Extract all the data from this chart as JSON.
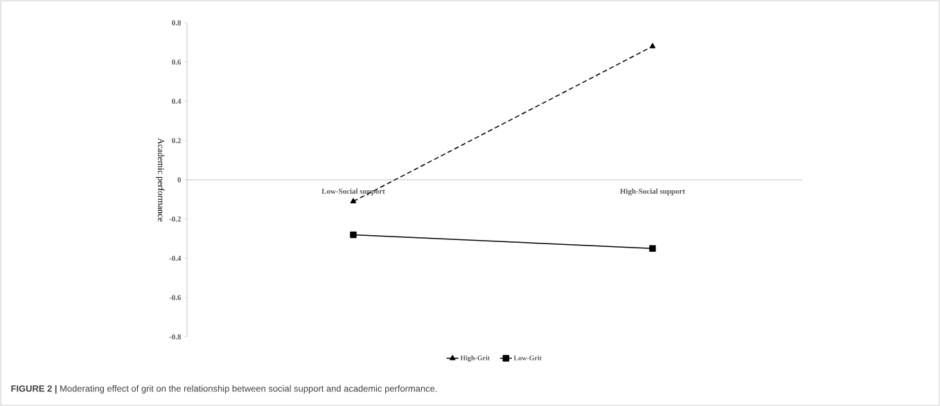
{
  "chart_data": {
    "type": "line",
    "ylabel": "Academic performance",
    "categories": [
      "Low-Social support",
      "High-Social support"
    ],
    "series": [
      {
        "name": "High-Grit",
        "color": "#000000",
        "values": [
          -0.11,
          0.68
        ],
        "marker": "triangle",
        "line_style": "dashed"
      },
      {
        "name": "Low-Grit",
        "color": "#000000",
        "values": [
          -0.28,
          -0.35
        ],
        "marker": "square",
        "line_style": "solid"
      }
    ],
    "ylim": [
      -0.8,
      0.8
    ],
    "yticks": [
      -0.8,
      -0.6,
      -0.4,
      -0.2,
      0,
      0.2,
      0.4,
      0.6,
      0.8
    ],
    "grid": false,
    "legend": "bottom",
    "annotations": [
      "**FIGURE 2 |** Moderating effect of grit on the relationship between social support and academic performance."
    ]
  }
}
